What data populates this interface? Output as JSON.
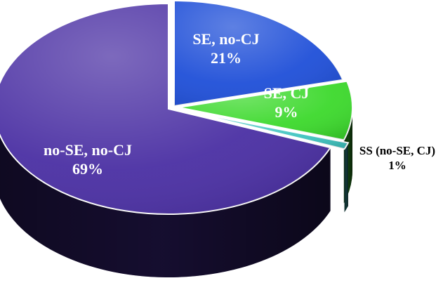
{
  "chart_data": {
    "type": "pie",
    "title": "",
    "slices": [
      {
        "label": "SE, no-CJ",
        "value": 21,
        "value_label": "21%",
        "color": "#1f4fd8"
      },
      {
        "label": "SE, CJ",
        "value": 9,
        "value_label": "9%",
        "color": "#3cd92c"
      },
      {
        "label": "SS (no-SE, CJ)",
        "value": 1,
        "value_label": "1%",
        "color": "#3fc4c0"
      },
      {
        "label": "no-SE, no-CJ",
        "value": 69,
        "value_label": "69%",
        "color": "#4a2fa3"
      }
    ],
    "style": "3d-exploded",
    "legend": "none"
  }
}
